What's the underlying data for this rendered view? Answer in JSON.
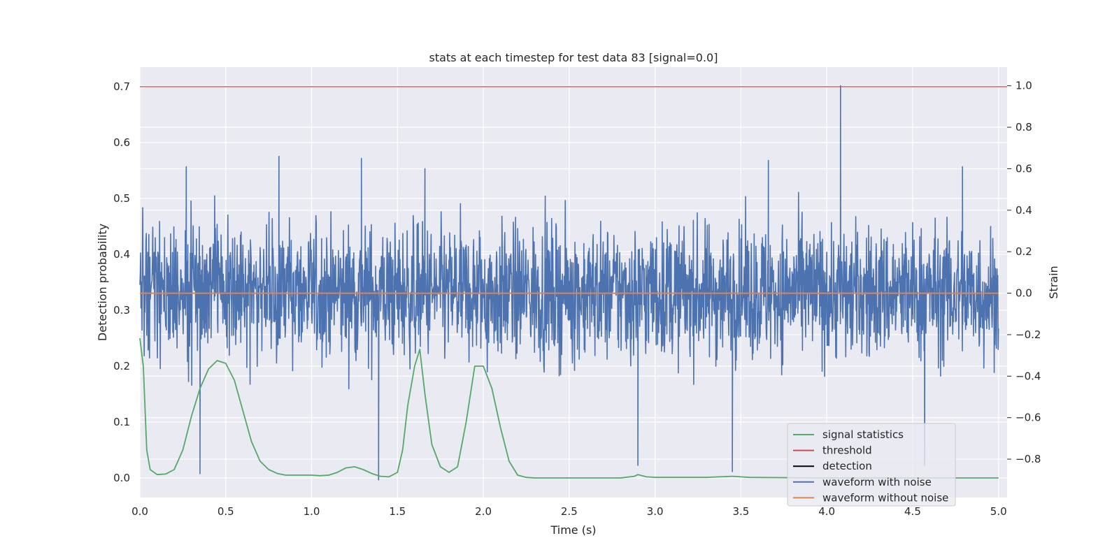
{
  "chart_data": {
    "type": "line",
    "title": "stats at each timestep for test data 83 [signal=0.0]",
    "xlabel": "Time (s)",
    "ylabel": "Detection probability",
    "y2label": "Strain",
    "xlim": [
      0.0,
      5.05
    ],
    "ylim": [
      -0.035,
      0.735
    ],
    "y2lim": [
      -0.985,
      1.09
    ],
    "grid": true,
    "x_ticks": [
      "0.0",
      "0.5",
      "1.0",
      "1.5",
      "2.0",
      "2.5",
      "3.0",
      "3.5",
      "4.0",
      "4.5",
      "5.0"
    ],
    "y_ticks": [
      "0.0",
      "0.1",
      "0.2",
      "0.3",
      "0.4",
      "0.5",
      "0.6",
      "0.7"
    ],
    "y2_ticks": [
      "−0.8",
      "−0.6",
      "−0.4",
      "−0.2",
      "0.0",
      "0.2",
      "0.4",
      "0.6",
      "0.8",
      "1.0"
    ],
    "legend_position": "lower-right",
    "legend": [
      "signal statistics",
      "threshold",
      "detection",
      "waveform with noise",
      "waveform without noise"
    ],
    "colors": {
      "signal_statistics": "#55a868",
      "threshold": "#c44e52",
      "detection": "#000000",
      "waveform_with_noise": "#4c72b0",
      "waveform_without_noise": "#dd8452",
      "plot_background": "#eaeaf2",
      "grid": "#ffffff"
    },
    "threshold": 0.7,
    "waveform_without_noise": 0.0,
    "waveform_with_noise": {
      "axis": "right",
      "x_range": [
        0.0,
        5.0
      ],
      "min": -0.9,
      "max": 1.0,
      "peaks": [
        [
          0.27,
          0.61
        ],
        [
          0.81,
          0.66
        ],
        [
          1.29,
          0.65
        ],
        [
          1.66,
          0.6
        ],
        [
          3.66,
          0.64
        ],
        [
          4.08,
          1.0
        ],
        [
          4.79,
          0.61
        ]
      ],
      "troughs": [
        [
          0.35,
          -0.87
        ],
        [
          1.39,
          -0.9
        ],
        [
          2.9,
          -0.83
        ],
        [
          3.45,
          -0.86
        ],
        [
          4.57,
          -0.83
        ]
      ]
    },
    "signal_statistics": {
      "x": [
        0.0,
        0.02,
        0.04,
        0.06,
        0.1,
        0.15,
        0.2,
        0.25,
        0.3,
        0.35,
        0.4,
        0.45,
        0.5,
        0.55,
        0.6,
        0.65,
        0.7,
        0.75,
        0.8,
        0.85,
        0.9,
        0.95,
        1.0,
        1.05,
        1.1,
        1.15,
        1.2,
        1.25,
        1.3,
        1.35,
        1.4,
        1.45,
        1.5,
        1.53,
        1.56,
        1.6,
        1.63,
        1.66,
        1.7,
        1.75,
        1.8,
        1.85,
        1.9,
        1.95,
        2.0,
        2.05,
        2.1,
        2.15,
        2.2,
        2.25,
        2.3,
        2.5,
        2.8,
        2.88,
        2.9,
        2.95,
        3.0,
        3.3,
        3.45,
        3.55,
        4.0,
        4.5,
        5.0
      ],
      "y": [
        0.25,
        0.2,
        0.05,
        0.015,
        0.006,
        0.007,
        0.015,
        0.05,
        0.11,
        0.16,
        0.195,
        0.21,
        0.205,
        0.175,
        0.12,
        0.065,
        0.03,
        0.015,
        0.008,
        0.005,
        0.005,
        0.005,
        0.005,
        0.004,
        0.005,
        0.01,
        0.018,
        0.02,
        0.015,
        0.008,
        0.003,
        0.002,
        0.01,
        0.05,
        0.13,
        0.2,
        0.23,
        0.15,
        0.06,
        0.02,
        0.01,
        0.02,
        0.1,
        0.2,
        0.2,
        0.16,
        0.09,
        0.03,
        0.005,
        0.001,
        0.0,
        0.0,
        0.0,
        0.003,
        0.006,
        0.002,
        0.001,
        0.001,
        0.003,
        0.001,
        0.0,
        0.0,
        0.0
      ]
    }
  }
}
